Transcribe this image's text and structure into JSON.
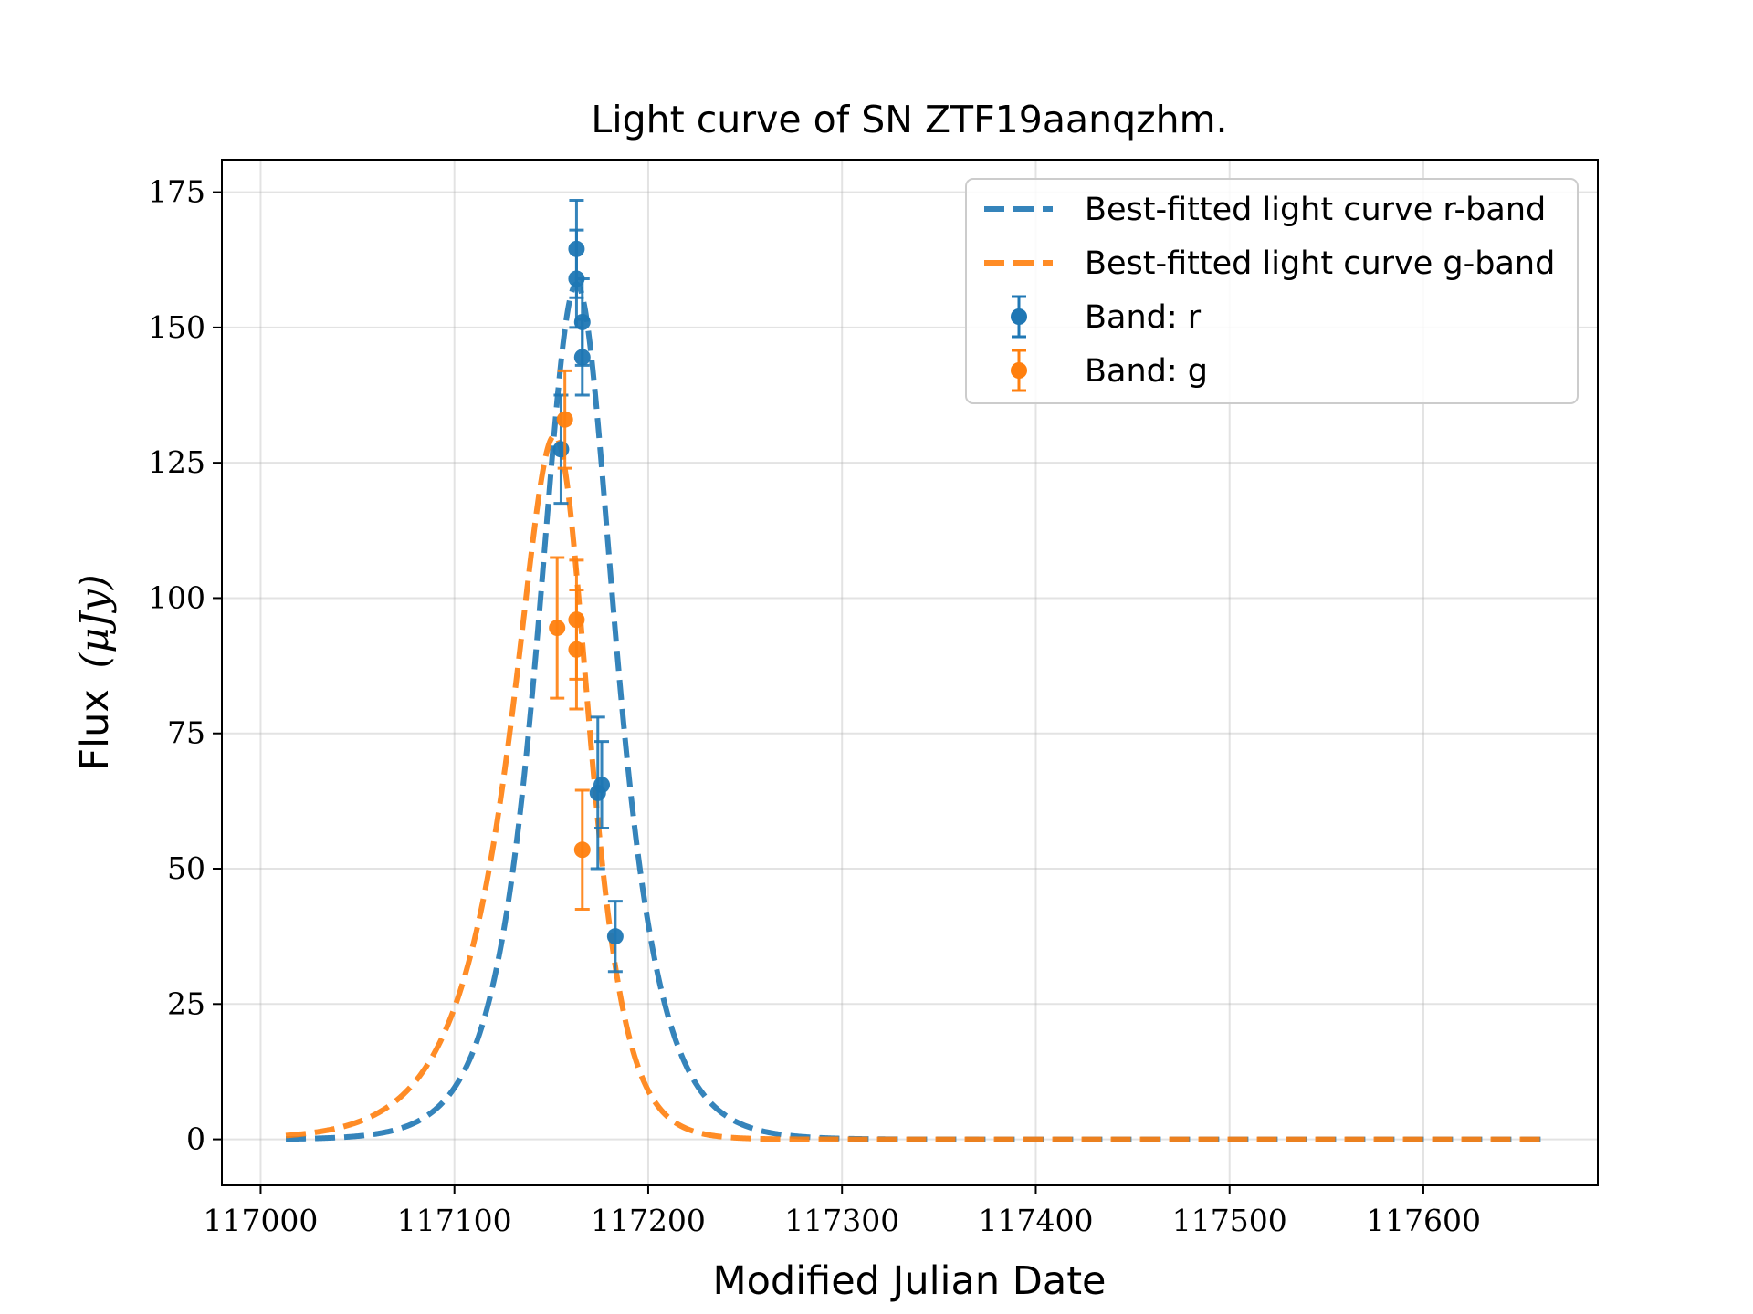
{
  "chart_data": {
    "type": "scatter",
    "title": "Light curve of SN ZTF19aanqzhm.",
    "xlabel": "Modified Julian Date",
    "ylabel_text": "Flux",
    "ylabel_unit": "(μJy)",
    "xlim": [
      116980,
      117690
    ],
    "ylim": [
      -8.5,
      181
    ],
    "xticks": [
      117000,
      117100,
      117200,
      117300,
      117400,
      117500,
      117600
    ],
    "xtick_labels": [
      "117000",
      "117100",
      "117200",
      "117300",
      "117400",
      "117500",
      "117600"
    ],
    "yticks": [
      0,
      25,
      50,
      75,
      100,
      125,
      150,
      175
    ],
    "ytick_labels": [
      "0",
      "25",
      "50",
      "75",
      "100",
      "125",
      "150",
      "175"
    ],
    "grid": true,
    "legend_position": "top-right",
    "legend": [
      "Best-fitted light curve r-band",
      "Best-fitted light curve g-band",
      "Band: r",
      "Band: g"
    ],
    "series": [
      {
        "name": "Best-fitted light curve r-band",
        "kind": "line",
        "style": "dashed",
        "color": "#1f77b4",
        "x_range": [
          117013,
          117661
        ],
        "model": {
          "amplitude": 158,
          "t0": 117163,
          "rise": 9.0,
          "fall": 18.0
        }
      },
      {
        "name": "Best-fitted light curve g-band",
        "kind": "line",
        "style": "dashed",
        "color": "#ff7f0e",
        "x_range": [
          117013,
          117661
        ],
        "model": {
          "amplitude": 130,
          "t0": 117157,
          "rise": 8.5,
          "fall": 13.0
        }
      },
      {
        "name": "Band: r",
        "kind": "errorbar",
        "color": "#1f77b4",
        "points": [
          {
            "x": 117155,
            "y": 127.5,
            "err": 10
          },
          {
            "x": 117163,
            "y": 164.5,
            "err": 9
          },
          {
            "x": 117163,
            "y": 159,
            "err": 9
          },
          {
            "x": 117166,
            "y": 151,
            "err": 8
          },
          {
            "x": 117166,
            "y": 144.5,
            "err": 7
          },
          {
            "x": 117174,
            "y": 64,
            "err": 14
          },
          {
            "x": 117176,
            "y": 65.5,
            "err": 8
          },
          {
            "x": 117183,
            "y": 37.5,
            "err": 6.5
          }
        ]
      },
      {
        "name": "Band: g",
        "kind": "errorbar",
        "color": "#ff7f0e",
        "points": [
          {
            "x": 117153,
            "y": 94.5,
            "err": 13
          },
          {
            "x": 117157,
            "y": 133,
            "err": 9
          },
          {
            "x": 117163,
            "y": 96,
            "err": 11
          },
          {
            "x": 117163,
            "y": 90.5,
            "err": 11
          },
          {
            "x": 117166,
            "y": 53.5,
            "err": 11
          }
        ]
      }
    ]
  }
}
